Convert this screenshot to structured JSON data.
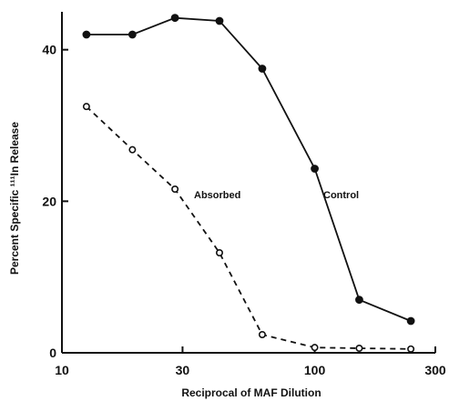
{
  "chart_data": {
    "type": "line",
    "title": "",
    "xlabel": "Reciprocal of MAF Dilution",
    "ylabel": "Percent Specific ¹¹¹In Release",
    "xscale": "log",
    "xlim": [
      10,
      300
    ],
    "ylim": [
      0,
      45
    ],
    "xticks": [
      10,
      30,
      100,
      300
    ],
    "yticks": [
      0,
      20,
      40
    ],
    "grid": false,
    "legend": "none",
    "series": [
      {
        "name": "Control",
        "line_style": "solid",
        "marker": "filled-circle",
        "color": "#111111",
        "x": [
          12.5,
          19,
          28,
          42,
          62,
          100,
          150,
          240
        ],
        "y": [
          42.0,
          42.0,
          44.2,
          43.8,
          37.5,
          24.3,
          7.0,
          4.2
        ]
      },
      {
        "name": "Absorbed",
        "line_style": "dashed",
        "marker": "open-circle",
        "color": "#111111",
        "x": [
          12.5,
          19,
          28,
          42,
          62,
          100,
          150,
          240
        ],
        "y": [
          32.5,
          26.8,
          21.6,
          13.2,
          2.4,
          0.7,
          0.6,
          0.5
        ]
      }
    ]
  }
}
